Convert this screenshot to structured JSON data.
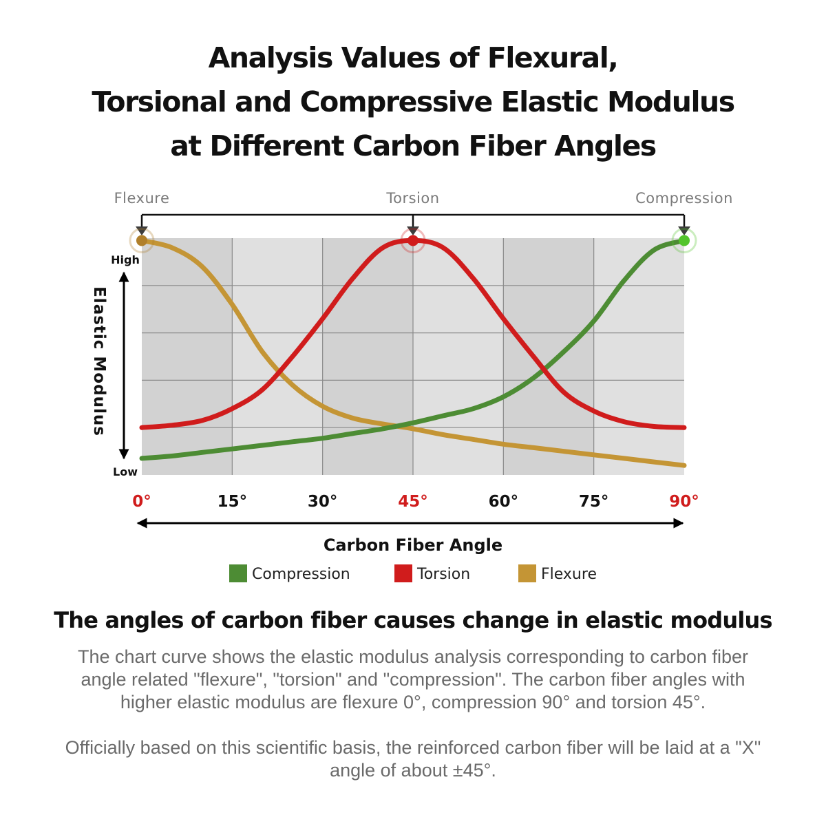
{
  "title": {
    "line1": "Analysis Values of Flexural,",
    "line2": "Torsional and Compressive Elastic Modulus",
    "line3": "at Different Carbon Fiber Angles"
  },
  "chart_data": {
    "type": "line",
    "title": "Analysis Values of Flexural, Torsional and Compressive Elastic Modulus at Different Carbon Fiber Angles",
    "xlabel": "Carbon Fiber Angle",
    "ylabel": "Elastic Modulus",
    "y_high_label": "High",
    "y_low_label": "Low",
    "xlim": [
      0,
      90
    ],
    "ylim": [
      0,
      100
    ],
    "x_ticks": [
      {
        "value": 0,
        "label": "0°",
        "highlight": true
      },
      {
        "value": 15,
        "label": "15°",
        "highlight": false
      },
      {
        "value": 30,
        "label": "30°",
        "highlight": false
      },
      {
        "value": 45,
        "label": "45°",
        "highlight": true
      },
      {
        "value": 60,
        "label": "60°",
        "highlight": false
      },
      {
        "value": 75,
        "label": "75°",
        "highlight": false
      },
      {
        "value": 90,
        "label": "90°",
        "highlight": true
      }
    ],
    "x": [
      0,
      5,
      10,
      15,
      20,
      25,
      30,
      35,
      40,
      45,
      50,
      55,
      60,
      65,
      70,
      75,
      80,
      85,
      90
    ],
    "series": [
      {
        "name": "Compression",
        "color": "#4d8c34",
        "peak_color": "#52c42c",
        "values": [
          7,
          8,
          9.5,
          11,
          12.5,
          14,
          15.5,
          17.5,
          19.5,
          22,
          25,
          28,
          33,
          41,
          52,
          65,
          82,
          95,
          99
        ]
      },
      {
        "name": "Torsion",
        "color": "#d01c1c",
        "peak_color": "#d01c1c",
        "values": [
          20,
          21,
          23,
          28,
          36,
          50,
          66,
          83,
          96,
          99,
          96,
          83,
          66,
          50,
          35,
          27,
          22.5,
          20.5,
          20
        ]
      },
      {
        "name": "Flexure",
        "color": "#c49535",
        "peak_color": "#b07f2a",
        "values": [
          99,
          96,
          88,
          72,
          52,
          38,
          29,
          24,
          21.5,
          19.5,
          17,
          15,
          13,
          11.5,
          10,
          8.5,
          7,
          5.5,
          4
        ]
      }
    ],
    "peak_markers": [
      {
        "label": "Flexure",
        "x": 0,
        "series": "Flexure"
      },
      {
        "label": "Torsion",
        "x": 45,
        "series": "Torsion"
      },
      {
        "label": "Compression",
        "x": 90,
        "series": "Compression"
      }
    ],
    "grid": true,
    "legend": "bottom",
    "legend_order": [
      "Compression",
      "Torsion",
      "Flexure"
    ]
  },
  "section": {
    "heading": "The angles of carbon fiber causes change in elastic modulus",
    "paragraph1": "The chart curve shows the elastic modulus analysis corresponding to carbon fiber angle related \"flexure\", \"torsion\" and \"compression\". The carbon fiber angles with higher elastic modulus are flexure 0°, compression 90° and torsion 45°.",
    "paragraph2": "Officially based on this scientific basis, the reinforced carbon fiber will be laid at a \"X\" angle of about ±45°."
  },
  "colors": {
    "tick_highlight": "#d01c1c",
    "grid_band_dark": "#d2d2d2",
    "grid_band_light": "#e0e0e0",
    "grid_line": "#8a8a8a"
  }
}
